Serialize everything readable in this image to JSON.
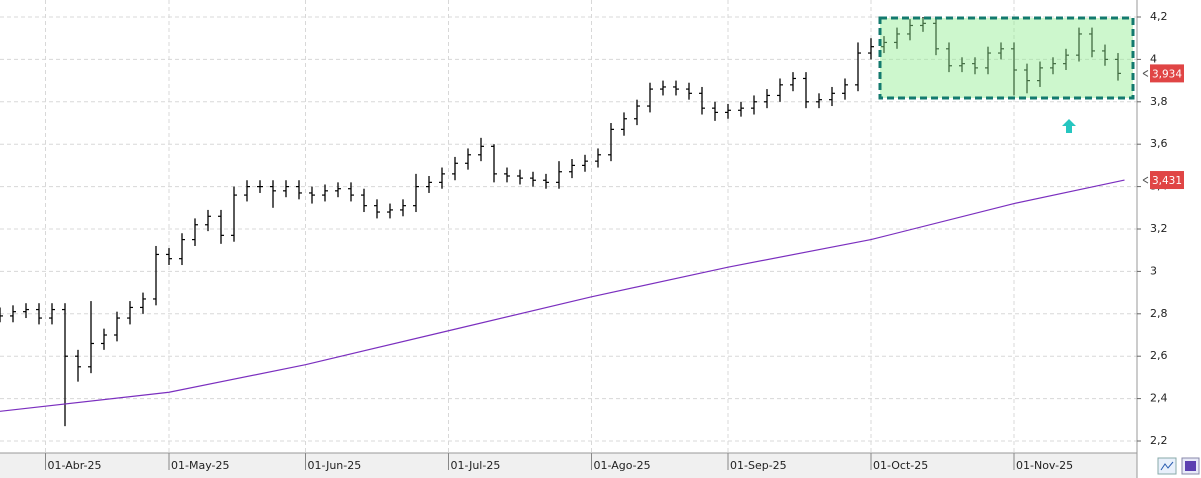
{
  "chart_data": {
    "type": "ohlc",
    "xlim": [
      0,
      174
    ],
    "ylim": [
      2.16,
      4.24
    ],
    "xticks": [
      {
        "value": 7,
        "label": "01-Abr-25"
      },
      {
        "value": 26,
        "label": "01-May-25"
      },
      {
        "value": 47,
        "label": "01-Jun-25"
      },
      {
        "value": 69,
        "label": "01-Jul-25"
      },
      {
        "value": 91,
        "label": "01-Ago-25"
      },
      {
        "value": 112,
        "label": "01-Sep-25"
      },
      {
        "value": 134,
        "label": "01-Oct-25"
      },
      {
        "value": 156,
        "label": "01-Nov-25"
      }
    ],
    "yticks": [
      {
        "value": 2.2,
        "label": "2,2"
      },
      {
        "value": 2.4,
        "label": "2,4"
      },
      {
        "value": 2.6,
        "label": "2,6"
      },
      {
        "value": 2.8,
        "label": "2,8"
      },
      3,
      {
        "value": 3.2,
        "label": "3,2"
      },
      {
        "value": 3.4,
        "label": "3,4"
      },
      {
        "value": 3.6,
        "label": "3,6"
      },
      {
        "value": 3.8,
        "label": "3,8"
      },
      4,
      {
        "value": 4.2,
        "label": "4,2"
      }
    ],
    "grid": true,
    "price": {
      "color": "#000000",
      "x": [
        0,
        2,
        4,
        6,
        8,
        10,
        12,
        14,
        16,
        18,
        20,
        22,
        24,
        26,
        28,
        30,
        32,
        34,
        36,
        38,
        40,
        42,
        44,
        46,
        48,
        50,
        52,
        54,
        56,
        58,
        60,
        62,
        64,
        66,
        68,
        70,
        72,
        74,
        76,
        78,
        80,
        82,
        84,
        86,
        88,
        90,
        92,
        94,
        96,
        98,
        100,
        102,
        104,
        106,
        108,
        110,
        112,
        114,
        116,
        118,
        120,
        122,
        124,
        126,
        128,
        130,
        132,
        134,
        136,
        138,
        140,
        142,
        144,
        146,
        148,
        150,
        152,
        154,
        156,
        158,
        160,
        162,
        164,
        166,
        168,
        170,
        172
      ],
      "open": [
        2.8,
        2.79,
        2.81,
        2.82,
        2.78,
        2.82,
        2.6,
        2.55,
        2.66,
        2.7,
        2.78,
        2.83,
        2.87,
        3.08,
        3.06,
        3.15,
        3.22,
        3.26,
        3.17,
        3.36,
        3.4,
        3.4,
        3.38,
        3.4,
        3.37,
        3.36,
        3.38,
        3.39,
        3.36,
        3.31,
        3.28,
        3.29,
        3.31,
        3.4,
        3.42,
        3.46,
        3.51,
        3.55,
        3.59,
        3.46,
        3.45,
        3.44,
        3.43,
        3.42,
        3.47,
        3.5,
        3.52,
        3.55,
        3.67,
        3.72,
        3.78,
        3.86,
        3.87,
        3.86,
        3.84,
        3.77,
        3.75,
        3.76,
        3.77,
        3.8,
        3.83,
        3.88,
        3.91,
        3.8,
        3.81,
        3.84,
        3.88,
        4.03,
        4.06,
        4.08,
        4.12,
        4.16,
        4.17,
        4.05,
        3.97,
        3.98,
        3.96,
        4.03,
        4.05,
        3.95,
        3.9,
        3.96,
        3.98,
        4.02,
        4.12,
        4.04,
        4.0
      ],
      "high": [
        2.83,
        2.84,
        2.85,
        2.85,
        2.85,
        2.85,
        2.63,
        2.86,
        2.73,
        2.81,
        2.86,
        2.9,
        3.12,
        3.11,
        3.18,
        3.25,
        3.29,
        3.29,
        3.4,
        3.43,
        3.43,
        3.43,
        3.43,
        3.43,
        3.4,
        3.41,
        3.42,
        3.42,
        3.39,
        3.34,
        3.32,
        3.34,
        3.46,
        3.45,
        3.49,
        3.54,
        3.58,
        3.63,
        3.6,
        3.49,
        3.48,
        3.47,
        3.46,
        3.52,
        3.53,
        3.55,
        3.58,
        3.7,
        3.75,
        3.81,
        3.89,
        3.9,
        3.9,
        3.89,
        3.87,
        3.8,
        3.79,
        3.8,
        3.83,
        3.86,
        3.91,
        3.94,
        3.94,
        3.84,
        3.87,
        3.91,
        4.08,
        4.1,
        4.11,
        4.15,
        4.19,
        4.2,
        4.2,
        4.08,
        4.01,
        4.01,
        4.06,
        4.08,
        4.08,
        3.98,
        3.99,
        4.01,
        4.05,
        4.15,
        4.15,
        4.07,
        4.03
      ],
      "low": [
        2.76,
        2.76,
        2.78,
        2.75,
        2.75,
        2.27,
        2.48,
        2.52,
        2.63,
        2.67,
        2.75,
        2.8,
        2.84,
        3.03,
        3.03,
        3.12,
        3.19,
        3.13,
        3.14,
        3.33,
        3.37,
        3.3,
        3.35,
        3.34,
        3.32,
        3.33,
        3.35,
        3.33,
        3.28,
        3.25,
        3.25,
        3.26,
        3.28,
        3.37,
        3.39,
        3.43,
        3.48,
        3.52,
        3.42,
        3.42,
        3.41,
        3.4,
        3.39,
        3.39,
        3.44,
        3.47,
        3.49,
        3.52,
        3.64,
        3.69,
        3.75,
        3.83,
        3.83,
        3.81,
        3.74,
        3.71,
        3.72,
        3.73,
        3.74,
        3.77,
        3.8,
        3.85,
        3.77,
        3.77,
        3.78,
        3.81,
        3.85,
        4.0,
        4.03,
        4.05,
        4.09,
        4.13,
        4.02,
        3.94,
        3.94,
        3.93,
        3.93,
        4.0,
        3.83,
        3.84,
        3.87,
        3.93,
        3.95,
        3.99,
        4.01,
        3.97,
        3.9
      ],
      "close": [
        2.79,
        2.81,
        2.82,
        2.78,
        2.82,
        2.6,
        2.55,
        2.66,
        2.7,
        2.78,
        2.83,
        2.87,
        3.08,
        3.06,
        3.15,
        3.22,
        3.26,
        3.17,
        3.36,
        3.4,
        3.4,
        3.38,
        3.4,
        3.37,
        3.36,
        3.38,
        3.39,
        3.36,
        3.31,
        3.28,
        3.29,
        3.31,
        3.4,
        3.42,
        3.46,
        3.51,
        3.55,
        3.59,
        3.46,
        3.45,
        3.44,
        3.43,
        3.42,
        3.47,
        3.5,
        3.52,
        3.55,
        3.67,
        3.72,
        3.78,
        3.86,
        3.87,
        3.86,
        3.84,
        3.77,
        3.75,
        3.76,
        3.77,
        3.8,
        3.83,
        3.88,
        3.91,
        3.8,
        3.81,
        3.84,
        3.88,
        4.03,
        4.06,
        4.08,
        4.12,
        4.16,
        4.17,
        4.05,
        3.97,
        3.98,
        3.96,
        4.03,
        4.05,
        3.95,
        3.9,
        3.96,
        3.98,
        4.02,
        4.12,
        4.04,
        4.0,
        3.934
      ],
      "last_label": {
        "value": 3.934,
        "label": "3,934"
      }
    },
    "ma": {
      "color": "#7b2fbf",
      "x": [
        0,
        26,
        47,
        69,
        91,
        112,
        134,
        156,
        173
      ],
      "values": [
        2.34,
        2.43,
        2.56,
        2.72,
        2.88,
        3.02,
        3.15,
        3.32,
        3.431
      ],
      "last_label": {
        "value": 3.431,
        "label": "3,431"
      }
    }
  }
}
